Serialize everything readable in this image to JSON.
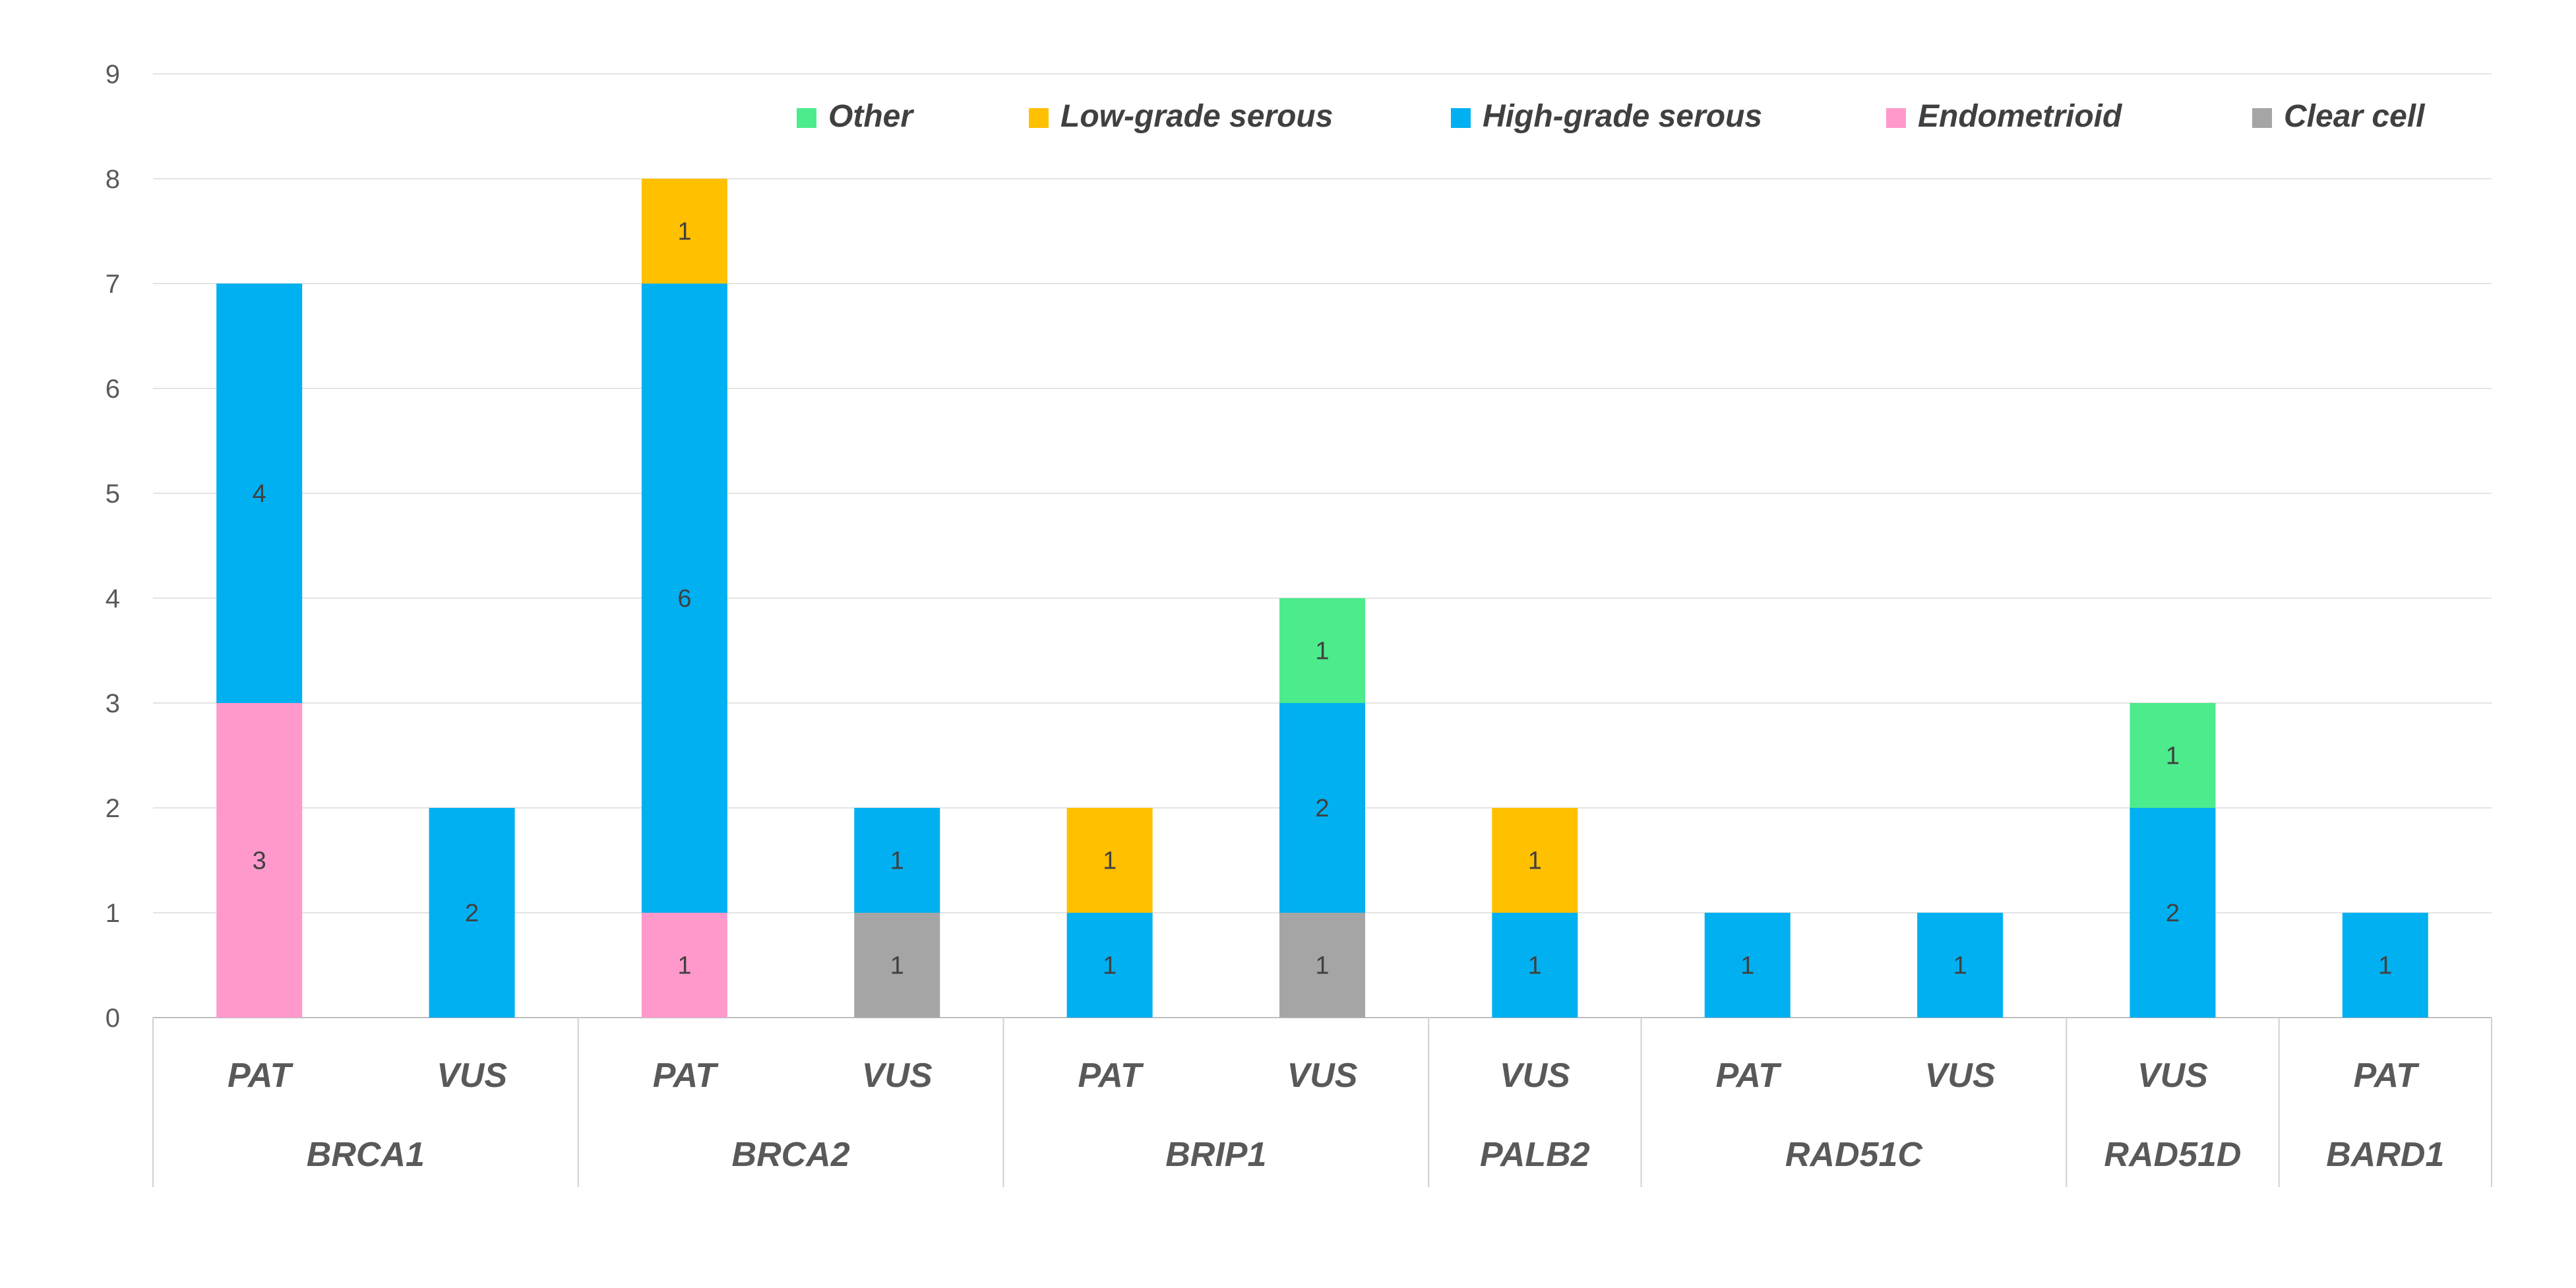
{
  "chart_data": {
    "type": "bar",
    "stacked": true,
    "title": "",
    "xlabel": "",
    "ylabel": "",
    "ylim": [
      0,
      9
    ],
    "yticks": [
      0,
      1,
      2,
      3,
      4,
      5,
      6,
      7,
      8,
      9
    ],
    "grid": true,
    "legend_position": "top-right",
    "legend": [
      {
        "name": "Other",
        "color": "#4CEB8C"
      },
      {
        "name": "Low-grade serous",
        "color": "#FFC000"
      },
      {
        "name": "High-grade serous",
        "color": "#00B0F0"
      },
      {
        "name": "Endometrioid",
        "color": "#FF99CC"
      },
      {
        "name": "Clear cell",
        "color": "#A5A5A5"
      }
    ],
    "groups": [
      {
        "gene": "BRCA1",
        "categories": [
          "PAT",
          "VUS"
        ]
      },
      {
        "gene": "BRCA2",
        "categories": [
          "PAT",
          "VUS"
        ]
      },
      {
        "gene": "BRIP1",
        "categories": [
          "PAT",
          "VUS"
        ]
      },
      {
        "gene": "PALB2",
        "categories": [
          "VUS"
        ]
      },
      {
        "gene": "RAD51C",
        "categories": [
          "PAT",
          "VUS"
        ]
      },
      {
        "gene": "RAD51D",
        "categories": [
          "VUS"
        ]
      },
      {
        "gene": "BARD1",
        "categories": [
          "PAT"
        ]
      }
    ],
    "categories": [
      "BRCA1 PAT",
      "BRCA1 VUS",
      "BRCA2 PAT",
      "BRCA2 VUS",
      "BRIP1 PAT",
      "BRIP1 VUS",
      "PALB2 VUS",
      "RAD51C PAT",
      "RAD51C VUS",
      "RAD51D VUS",
      "BARD1 PAT"
    ],
    "series": [
      {
        "name": "Clear cell",
        "color": "#A5A5A5",
        "values": [
          0,
          0,
          0,
          1,
          0,
          1,
          0,
          0,
          0,
          0,
          0
        ]
      },
      {
        "name": "Endometrioid",
        "color": "#FF99CC",
        "values": [
          3,
          0,
          1,
          0,
          0,
          0,
          0,
          0,
          0,
          0,
          0
        ]
      },
      {
        "name": "High-grade serous",
        "color": "#00B0F0",
        "values": [
          4,
          2,
          6,
          1,
          1,
          2,
          1,
          1,
          1,
          2,
          1
        ]
      },
      {
        "name": "Low-grade serous",
        "color": "#FFC000",
        "values": [
          0,
          0,
          1,
          0,
          1,
          0,
          1,
          0,
          0,
          0,
          0
        ]
      },
      {
        "name": "Other",
        "color": "#4CEB8C",
        "values": [
          0,
          0,
          0,
          0,
          0,
          1,
          0,
          0,
          0,
          1,
          0
        ]
      }
    ]
  }
}
